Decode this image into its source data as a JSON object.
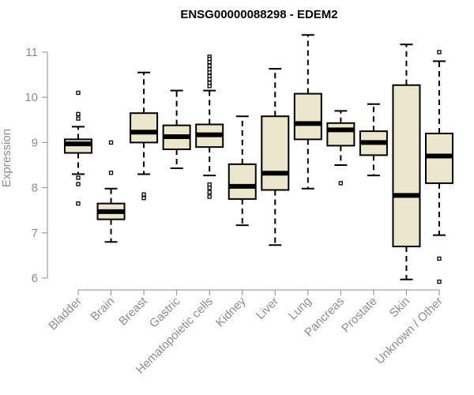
{
  "chart_data": {
    "type": "boxplot",
    "title": "ENSG00000088298 - EDEM2",
    "xlabel": "",
    "ylabel": "Expression",
    "ylim": [
      5.85,
      11.25
    ],
    "yticks": [
      "6",
      "7",
      "8",
      "9",
      "10",
      "11"
    ],
    "categories": [
      "Bladder",
      "Brain",
      "Breast",
      "Gastric",
      "Hematopoietic cells",
      "Kidney",
      "Liver",
      "Lung",
      "Pancreas",
      "Prostate",
      "Skin",
      "Unknown / Other"
    ],
    "boxes": [
      {
        "name": "Bladder",
        "whisker_low": 8.3,
        "q1": 8.77,
        "median": 8.97,
        "q3": 9.07,
        "whisker_high": 9.35,
        "outliers": [
          10.1,
          9.63,
          9.53,
          8.22,
          8.08,
          7.65
        ]
      },
      {
        "name": "Brain",
        "whisker_low": 6.8,
        "q1": 7.3,
        "median": 7.47,
        "q3": 7.65,
        "whisker_high": 7.98,
        "outliers": [
          9.0,
          8.33
        ]
      },
      {
        "name": "Breast",
        "whisker_low": 8.3,
        "q1": 9.0,
        "median": 9.23,
        "q3": 9.65,
        "whisker_high": 10.55,
        "outliers": [
          7.85,
          7.77
        ]
      },
      {
        "name": "Gastric",
        "whisker_low": 8.43,
        "q1": 8.85,
        "median": 9.13,
        "q3": 9.38,
        "whisker_high": 10.15,
        "outliers": []
      },
      {
        "name": "Hematopoietic cells",
        "whisker_low": 8.27,
        "q1": 8.9,
        "median": 9.17,
        "q3": 9.4,
        "whisker_high": 10.15,
        "outliers": [
          10.9,
          10.85,
          10.78,
          10.7,
          10.62,
          10.55,
          10.47,
          10.4,
          10.32,
          10.25,
          7.8,
          7.9,
          8.0,
          8.07
        ]
      },
      {
        "name": "Kidney",
        "whisker_low": 7.17,
        "q1": 7.75,
        "median": 8.03,
        "q3": 8.52,
        "whisker_high": 9.58,
        "outliers": []
      },
      {
        "name": "Liver",
        "whisker_low": 6.73,
        "q1": 7.95,
        "median": 8.32,
        "q3": 9.58,
        "whisker_high": 10.63,
        "outliers": []
      },
      {
        "name": "Lung",
        "whisker_low": 7.98,
        "q1": 9.07,
        "median": 9.42,
        "q3": 10.08,
        "whisker_high": 11.38,
        "outliers": []
      },
      {
        "name": "Pancreas",
        "whisker_low": 8.5,
        "q1": 8.93,
        "median": 9.28,
        "q3": 9.43,
        "whisker_high": 9.7,
        "outliers": [
          8.1
        ]
      },
      {
        "name": "Prostate",
        "whisker_low": 8.27,
        "q1": 8.72,
        "median": 9.0,
        "q3": 9.25,
        "whisker_high": 9.85,
        "outliers": []
      },
      {
        "name": "Skin",
        "whisker_low": 5.97,
        "q1": 6.7,
        "median": 7.83,
        "q3": 10.27,
        "whisker_high": 11.17,
        "outliers": []
      },
      {
        "name": "Unknown / Other",
        "whisker_low": 6.95,
        "q1": 8.1,
        "median": 8.7,
        "q3": 9.2,
        "whisker_high": 10.8,
        "outliers": [
          11.0,
          6.43,
          5.92
        ]
      }
    ],
    "colors": {
      "box_fill": "#ede6cf",
      "box_stroke": "#000000",
      "median": "#000000",
      "axis": "#8c8c8c",
      "title": "#000000",
      "label": "#8c8c8c"
    },
    "grid": false
  }
}
